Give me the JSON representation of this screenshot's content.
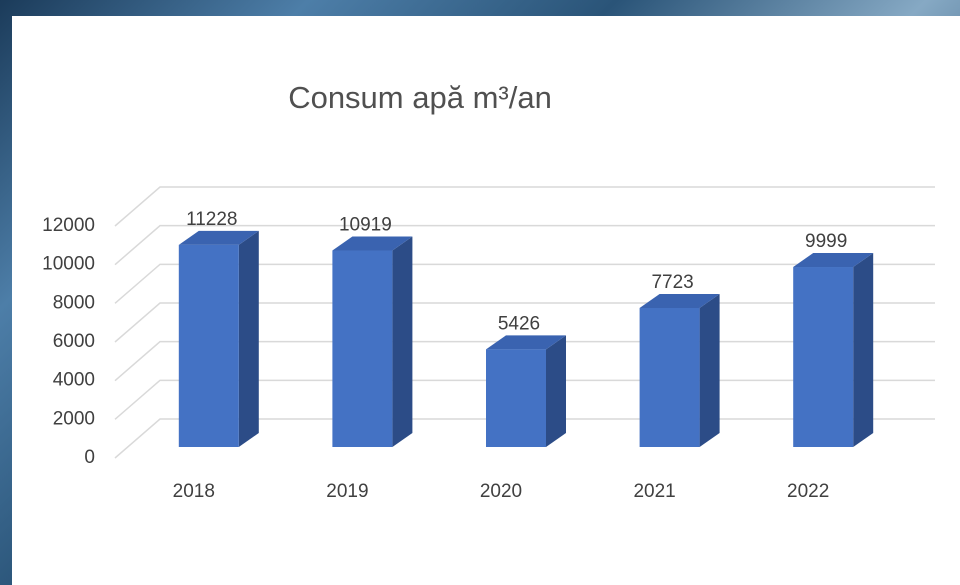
{
  "chart_data": {
    "type": "bar3d",
    "title": "Consum apă m³/an",
    "categories": [
      "2018",
      "2019",
      "2020",
      "2021",
      "2022"
    ],
    "values": [
      11228,
      10919,
      5426,
      7723,
      9999
    ],
    "color": "#4472c4",
    "ylim": [
      0,
      12000
    ],
    "yticks": [
      0,
      2000,
      4000,
      6000,
      8000,
      10000,
      12000
    ],
    "grid": true
  }
}
